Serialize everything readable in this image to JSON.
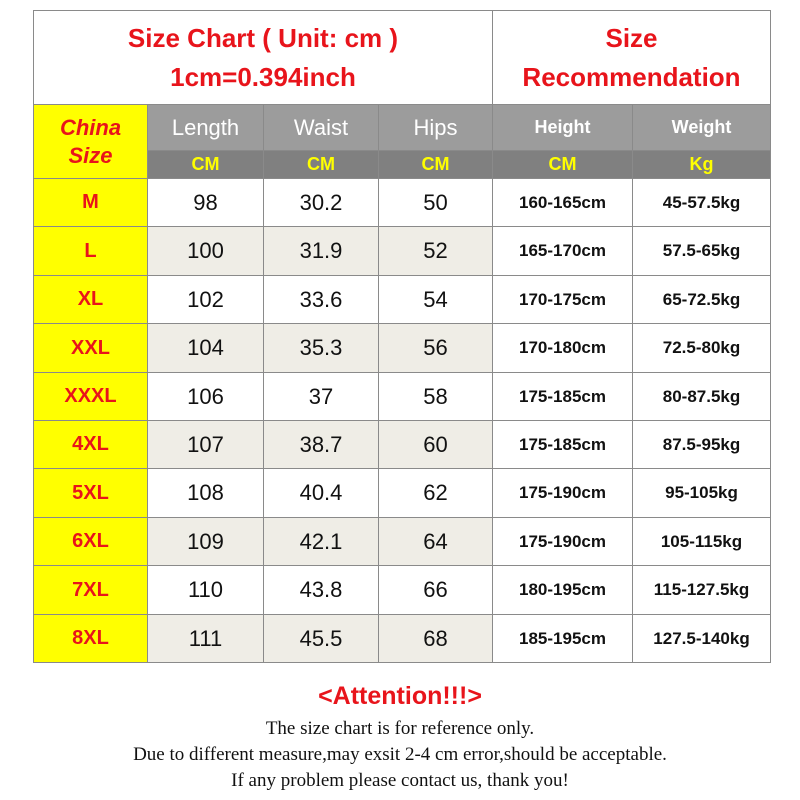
{
  "header": {
    "title_lines": [
      "Size Chart ( Unit: cm )",
      "1cm=0.394inch"
    ],
    "recommendation_lines": [
      "Size",
      "Recommendation"
    ]
  },
  "table": {
    "columns": [
      "China Size",
      "Length",
      "Waist",
      "Hips",
      "Height",
      "Weight"
    ],
    "units": [
      "CM",
      "CM",
      "CM",
      "CM",
      "Kg"
    ],
    "rows": [
      [
        "M",
        98,
        30.2,
        50,
        "160-165cm",
        "45-57.5kg"
      ],
      [
        "L",
        100,
        31.9,
        52,
        "165-170cm",
        "57.5-65kg"
      ],
      [
        "XL",
        102,
        33.6,
        54,
        "170-175cm",
        "65-72.5kg"
      ],
      [
        "XXL",
        104,
        35.3,
        56,
        "170-180cm",
        "72.5-80kg"
      ],
      [
        "XXXL",
        106,
        37,
        58,
        "175-185cm",
        "80-87.5kg"
      ],
      [
        "4XL",
        107,
        38.7,
        60,
        "175-185cm",
        "87.5-95kg"
      ],
      [
        "5XL",
        108,
        40.4,
        62,
        "175-190cm",
        "95-105kg"
      ],
      [
        "6XL",
        109,
        42.1,
        64,
        "175-190cm",
        "105-115kg"
      ],
      [
        "7XL",
        110,
        43.8,
        66,
        "180-195cm",
        "115-127.5kg"
      ],
      [
        "8XL",
        111,
        45.5,
        68,
        "185-195cm",
        "127.5-140kg"
      ]
    ]
  },
  "attention": {
    "title": "<Attention!!!>",
    "lines": [
      "The size chart is for reference only.",
      "Due to different measure,may exsit 2-4 cm error,should be acceptable.",
      "If any problem please contact us, thank you!"
    ]
  }
}
